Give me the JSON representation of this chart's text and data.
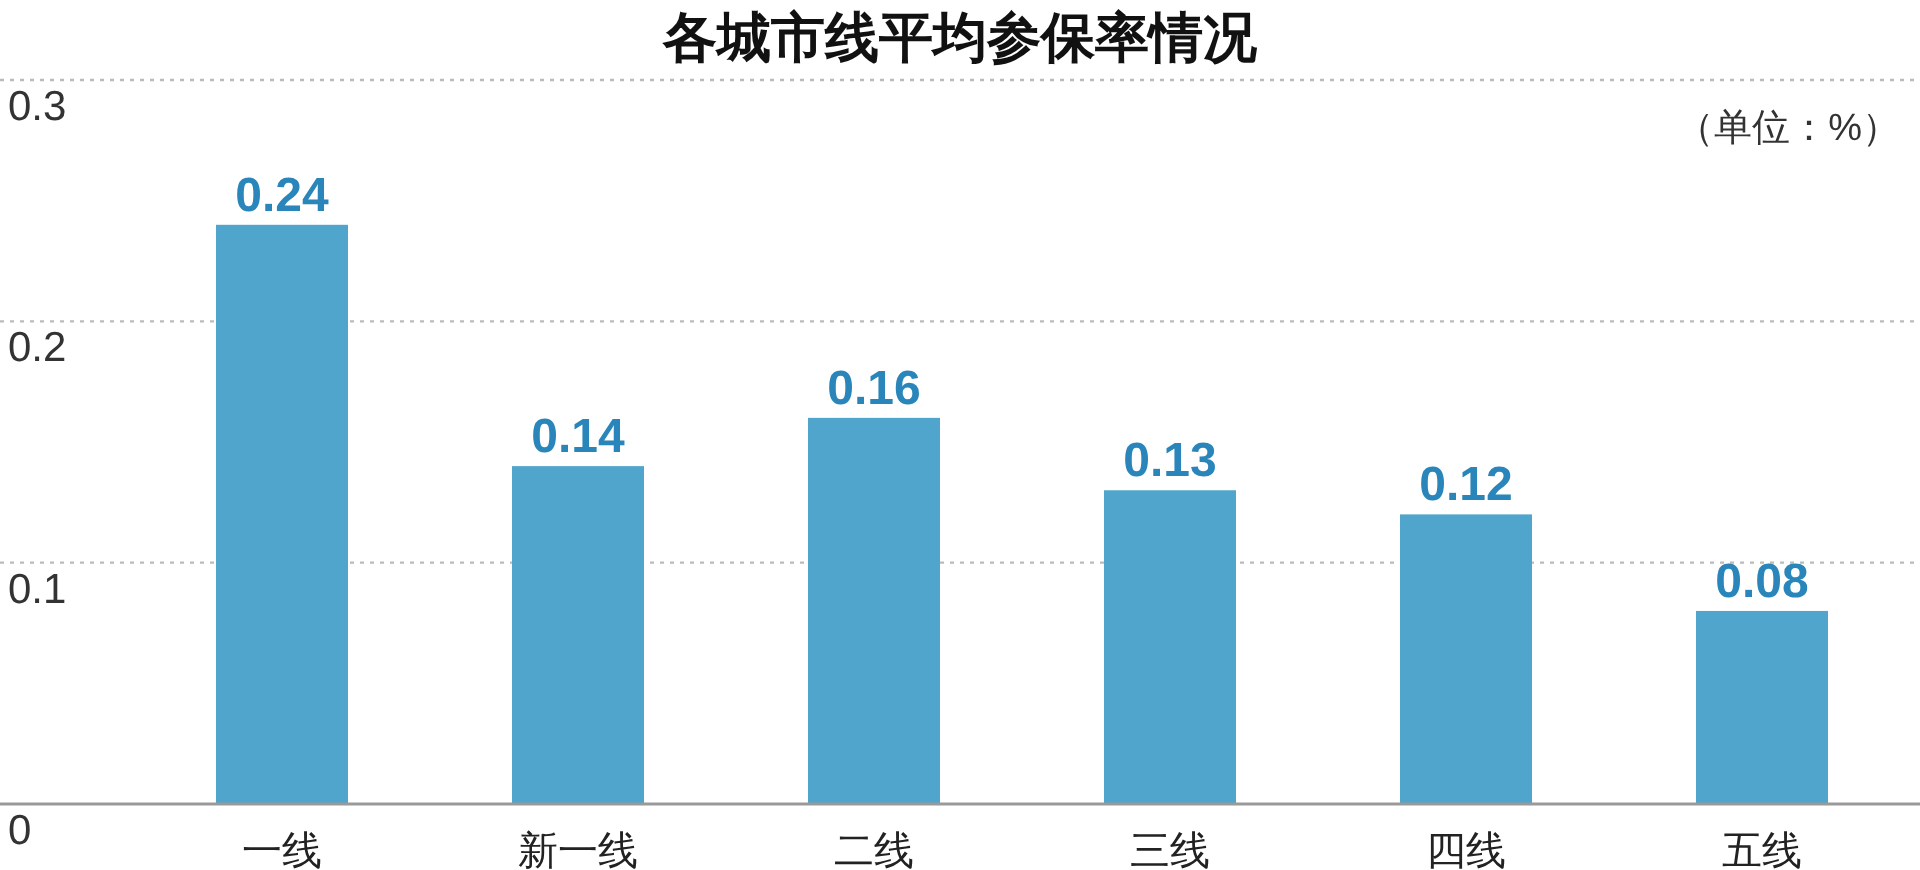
{
  "chart_data": {
    "type": "bar",
    "title": "各城市线平均参保率情况",
    "categories": [
      "一线",
      "新一线",
      "二线",
      "三线",
      "四线",
      "五线"
    ],
    "values": [
      0.24,
      0.14,
      0.16,
      0.13,
      0.12,
      0.08
    ],
    "color": "#4fa5cb",
    "ylim": [
      0,
      0.3
    ],
    "yticks": [
      0,
      0.1,
      0.2,
      0.3
    ],
    "grid": "y",
    "data_labels": true,
    "annotations": [
      "（单位：%）"
    ]
  }
}
